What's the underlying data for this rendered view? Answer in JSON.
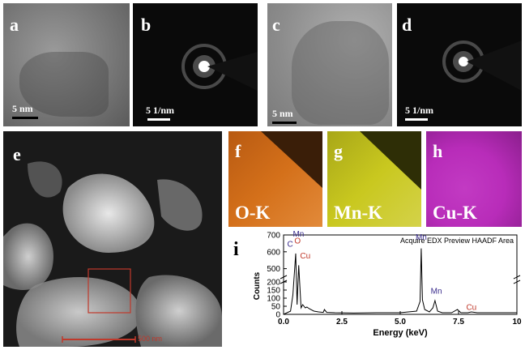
{
  "panels": {
    "a": {
      "label": "a",
      "scale": "5 nm"
    },
    "b": {
      "label": "b",
      "scale": "5 1/nm"
    },
    "c": {
      "label": "c",
      "scale": "5 nm"
    },
    "d": {
      "label": "d",
      "scale": "5 1/nm"
    },
    "e": {
      "label": "e",
      "scale": "500 nm"
    },
    "f": {
      "label": "f",
      "element": "O-K",
      "color": "#d4701a"
    },
    "g": {
      "label": "g",
      "element": "Mn-K",
      "color": "#c9c81f"
    },
    "h": {
      "label": "h",
      "element": "Cu-K",
      "color": "#b82cb9"
    },
    "i": {
      "label": "i"
    }
  },
  "chart_data": {
    "type": "line",
    "title": "Acquire EDX Preview HAADF Area",
    "xlabel": "Energy (keV)",
    "ylabel": "Counts",
    "xlim": [
      0,
      10
    ],
    "xticks": [
      "0.0",
      "2.5",
      "5.0",
      "7.5",
      "10"
    ],
    "yticks": [
      "0",
      "50",
      "100",
      "150",
      "200",
      "500",
      "600",
      "700"
    ],
    "axis_break": "between 200 and 500 counts",
    "series": [
      {
        "x": [
          0.0,
          0.15,
          0.3,
          0.4,
          0.52,
          0.58,
          0.65,
          0.75,
          0.82,
          0.93,
          1.0,
          1.1,
          1.3,
          1.5,
          1.7,
          1.75,
          1.85,
          2.2,
          3.0,
          4.0,
          5.0,
          5.7,
          5.85,
          5.9,
          5.95,
          6.05,
          6.25,
          6.4,
          6.49,
          6.6,
          6.8,
          7.2,
          7.45,
          7.6,
          7.9,
          8.05,
          8.3,
          9.0,
          10.0
        ],
        "y": [
          0,
          10,
          20,
          120,
          590,
          60,
          520,
          40,
          60,
          40,
          45,
          35,
          20,
          15,
          12,
          30,
          12,
          10,
          8,
          10,
          10,
          20,
          80,
          620,
          90,
          30,
          15,
          40,
          85,
          20,
          10,
          10,
          30,
          10,
          10,
          15,
          10,
          10,
          10
        ]
      }
    ],
    "annotations": [
      {
        "text": "C",
        "x": 0.28,
        "y": 630,
        "color": "#3a2c8c"
      },
      {
        "text": "Mn",
        "x": 0.64,
        "y": 690,
        "color": "#3a2c8c"
      },
      {
        "text": "O",
        "x": 0.6,
        "y": 650,
        "color": "#c0392b"
      },
      {
        "text": "Cu",
        "x": 0.93,
        "y": 560,
        "color": "#c0392b"
      },
      {
        "text": "Mn",
        "x": 5.9,
        "y": 670,
        "color": "#3a2c8c"
      },
      {
        "text": "Mn",
        "x": 6.55,
        "y": 128,
        "color": "#3a2c8c"
      },
      {
        "text": "Cu",
        "x": 8.05,
        "y": 28,
        "color": "#c0392b"
      }
    ]
  }
}
